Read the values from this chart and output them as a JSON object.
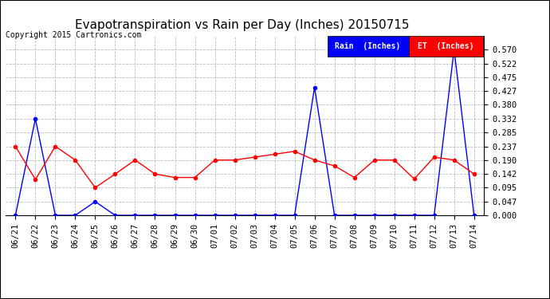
{
  "title": "Evapotranspiration vs Rain per Day (Inches) 20150715",
  "copyright": "Copyright 2015 Cartronics.com",
  "x_labels": [
    "06/21",
    "06/22",
    "06/23",
    "06/24",
    "06/25",
    "06/26",
    "06/27",
    "06/28",
    "06/29",
    "06/30",
    "07/01",
    "07/02",
    "07/03",
    "07/04",
    "07/05",
    "07/06",
    "07/07",
    "07/08",
    "07/09",
    "07/10",
    "07/11",
    "07/12",
    "07/13",
    "07/14"
  ],
  "rain_values": [
    0.0,
    0.332,
    0.0,
    0.0,
    0.047,
    0.0,
    0.0,
    0.0,
    0.0,
    0.0,
    0.0,
    0.0,
    0.0,
    0.0,
    0.0,
    0.44,
    0.0,
    0.0,
    0.0,
    0.0,
    0.0,
    0.0,
    0.57,
    0.0
  ],
  "et_values": [
    0.237,
    0.123,
    0.237,
    0.19,
    0.095,
    0.142,
    0.19,
    0.142,
    0.13,
    0.13,
    0.19,
    0.19,
    0.2,
    0.21,
    0.22,
    0.19,
    0.17,
    0.13,
    0.19,
    0.19,
    0.125,
    0.2,
    0.19,
    0.142
  ],
  "rain_color": "#0000ff",
  "et_color": "#ff0000",
  "background_color": "#ffffff",
  "grid_color": "#bbbbbb",
  "ylim": [
    0.0,
    0.617
  ],
  "yticks": [
    0.0,
    0.047,
    0.095,
    0.142,
    0.19,
    0.237,
    0.285,
    0.332,
    0.38,
    0.427,
    0.475,
    0.522,
    0.57
  ],
  "legend_rain_bg": "#0000ff",
  "legend_et_bg": "#ff0000",
  "legend_rain_text": "Rain  (Inches)",
  "legend_et_text": "ET  (Inches)",
  "title_fontsize": 11,
  "copyright_fontsize": 7,
  "tick_fontsize": 7.5,
  "marker_size": 3
}
